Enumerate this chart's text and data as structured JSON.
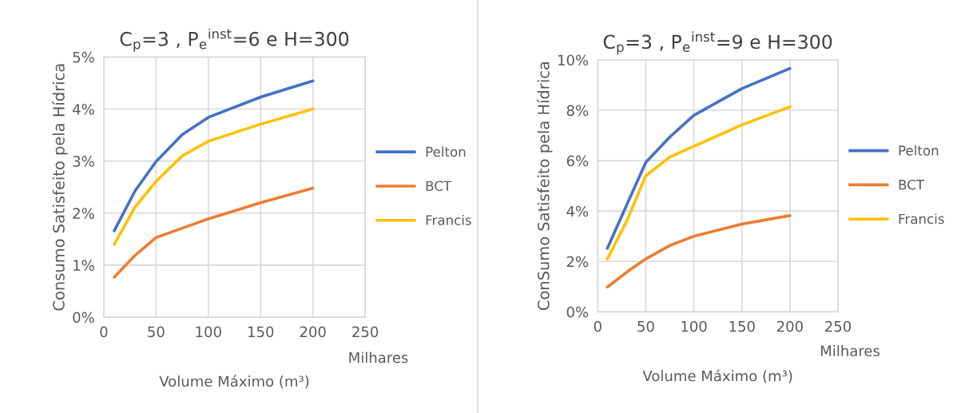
{
  "chart_data": [
    {
      "type": "line",
      "title": "C$_{p}$=3 , P$_{e}$$^{inst}$=6 e H=300",
      "xlabel": "Volume Máximo (m³)",
      "ylabel": "Consumo Satisfeito pela Hídrica",
      "annotations": [
        "Milhares"
      ],
      "x": [
        10,
        30,
        50,
        75,
        100,
        150,
        200
      ],
      "series": [
        {
          "name": "Pelton",
          "color": "#4472c4",
          "values": [
            1.66,
            2.43,
            2.99,
            3.51,
            3.84,
            4.23,
            4.54
          ]
        },
        {
          "name": "BCT",
          "color": "#ed7d31",
          "values": [
            0.77,
            1.19,
            1.53,
            1.71,
            1.89,
            2.2,
            2.48
          ]
        },
        {
          "name": "Francis",
          "color": "#ffc000",
          "values": [
            1.4,
            2.12,
            2.61,
            3.1,
            3.38,
            3.71,
            4.0
          ]
        }
      ],
      "xlim": [
        0,
        250
      ],
      "xticks": [
        0,
        50,
        100,
        150,
        200,
        250
      ],
      "ylim": [
        0,
        5
      ],
      "yticks": [
        {
          "value": 0,
          "label": "0%"
        },
        {
          "value": 1,
          "label": "1%"
        },
        {
          "value": 2,
          "label": "2%"
        },
        {
          "value": 3,
          "label": "3%"
        },
        {
          "value": 4,
          "label": "4%"
        },
        {
          "value": 5,
          "label": "5%"
        }
      ],
      "grid": true,
      "legend": "right",
      "marker": "none",
      "line_style": "solid"
    },
    {
      "type": "line",
      "title": "C$_{p}$=3 , P$_{e}$$^{inst}$=9 e H=300",
      "xlabel": "Volume Máximo (m³)",
      "ylabel": "ConSumo Satisfeito pela Hídrica",
      "annotations": [
        "Milhares"
      ],
      "x": [
        10,
        30,
        50,
        75,
        100,
        150,
        200
      ],
      "series": [
        {
          "name": "Pelton",
          "color": "#4472c4",
          "values": [
            2.52,
            4.23,
            5.93,
            6.94,
            7.8,
            8.86,
            9.66
          ]
        },
        {
          "name": "BCT",
          "color": "#ed7d31",
          "values": [
            0.98,
            1.57,
            2.1,
            2.63,
            3.0,
            3.48,
            3.82
          ]
        },
        {
          "name": "Francis",
          "color": "#ffc000",
          "values": [
            2.1,
            3.59,
            5.4,
            6.14,
            6.57,
            7.42,
            8.14
          ]
        }
      ],
      "xlim": [
        0,
        250
      ],
      "xticks": [
        0,
        50,
        100,
        150,
        200,
        250
      ],
      "ylim": [
        0,
        10
      ],
      "yticks": [
        {
          "value": 0,
          "label": "0%"
        },
        {
          "value": 2,
          "label": "2%"
        },
        {
          "value": 4,
          "label": "4%"
        },
        {
          "value": 6,
          "label": "6%"
        },
        {
          "value": 8,
          "label": "8%"
        },
        {
          "value": 10,
          "label": "10%"
        }
      ],
      "grid": true,
      "legend": "right",
      "marker": "none",
      "line_style": "solid"
    }
  ]
}
